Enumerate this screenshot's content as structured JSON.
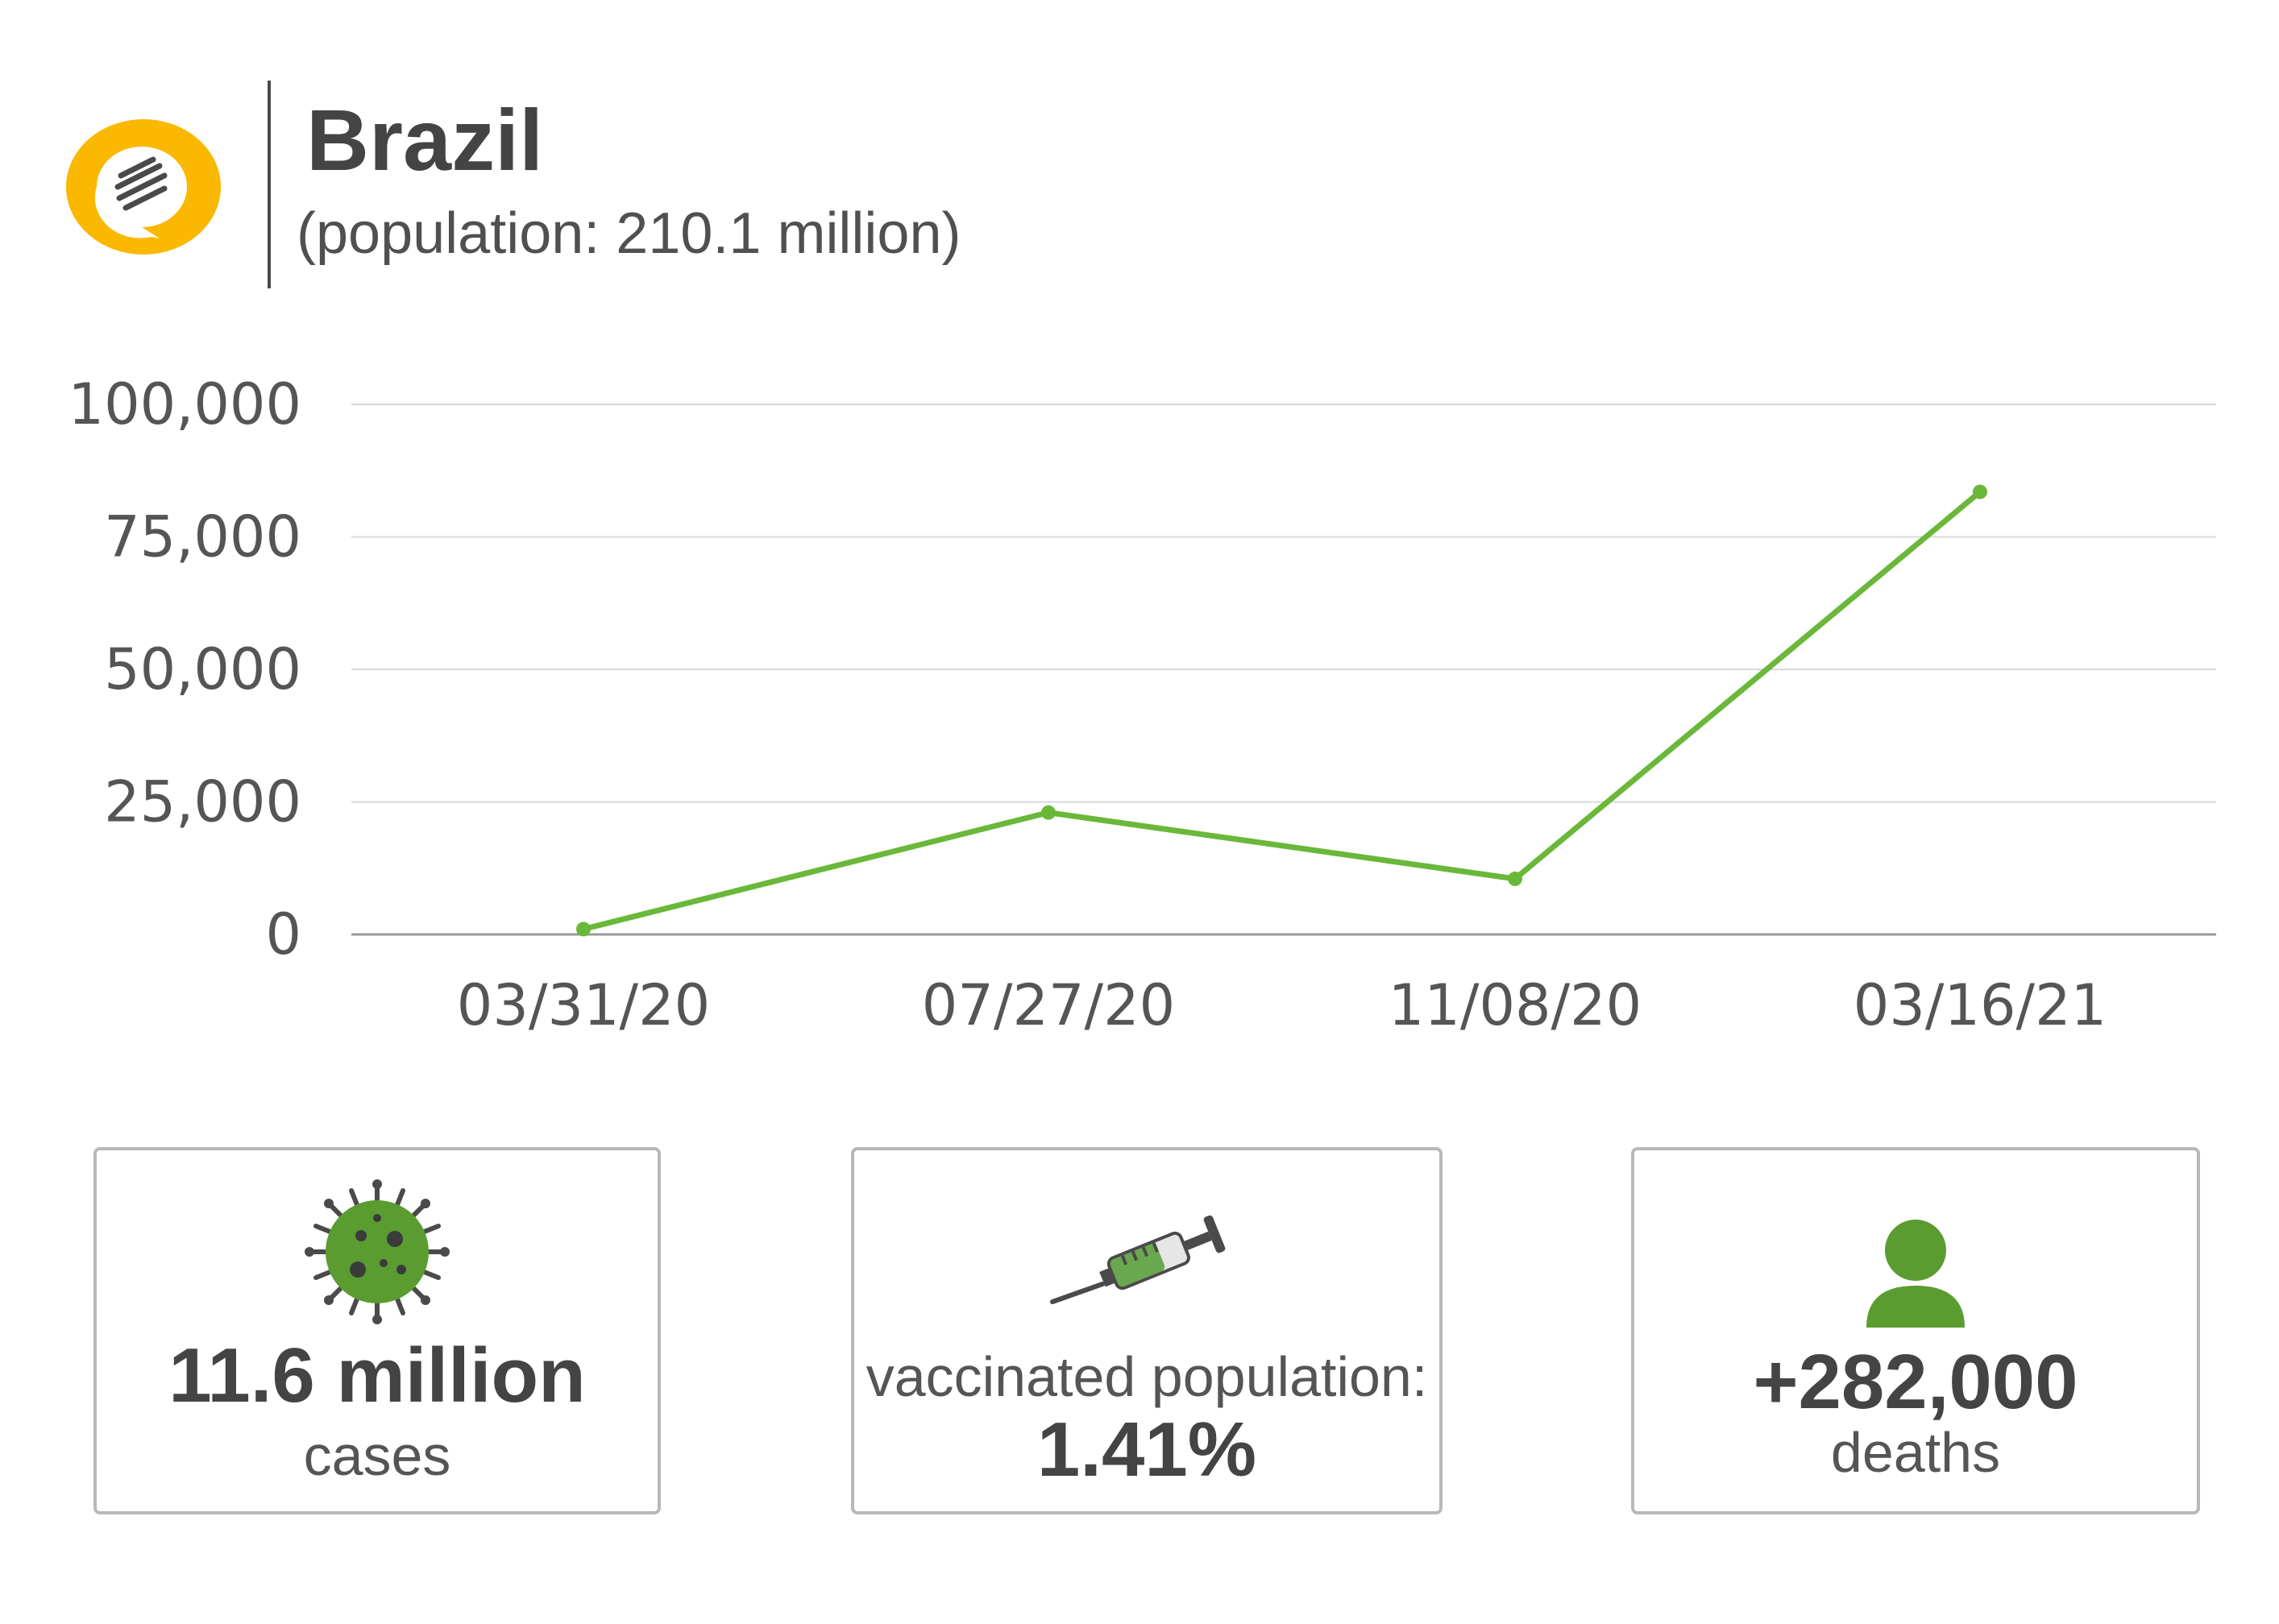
{
  "header": {
    "title": "Brazil",
    "subtitle": "(population: 210.1 million)"
  },
  "colors": {
    "accent_line": "#6ab83a",
    "logo_yellow": "#fbb800",
    "icon_green": "#5a9c30",
    "text": "#4a4a4a",
    "grid": "#d9d9d9"
  },
  "chart_data": {
    "type": "line",
    "x": [
      "03/31/20",
      "07/27/20",
      "11/08/20",
      "03/16/21"
    ],
    "series": [
      {
        "values": [
          1000,
          23000,
          10500,
          83500
        ]
      }
    ],
    "yticks": [
      "0",
      "25,000",
      "50,000",
      "75,000",
      "100,000"
    ],
    "ylim": [
      0,
      100000
    ],
    "grid": true,
    "title": "",
    "xlabel": "",
    "ylabel": ""
  },
  "stats": [
    {
      "icon": "virus-icon",
      "value": "11.6 million",
      "label": "cases"
    },
    {
      "icon": "syringe-icon",
      "label": "vaccinated population:",
      "value": "1.41%"
    },
    {
      "icon": "person-icon",
      "value": "+282,000",
      "label": "deaths"
    }
  ]
}
